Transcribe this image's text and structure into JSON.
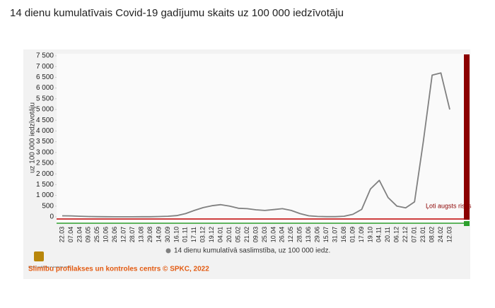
{
  "chart_data": {
    "type": "line",
    "title": "14 dienu kumulatīvais Covid-19 gadījumu skaits uz 100 000 iedzīvotāju",
    "y_label": "uz 100 000 iedzīvotāju",
    "categories": [
      "22.03",
      "07.04",
      "23.04",
      "09.05",
      "25.05",
      "10.06",
      "26.06",
      "12.07",
      "28.07",
      "13.08",
      "29.08",
      "14.09",
      "30.09",
      "16.10",
      "01.11",
      "17.11",
      "03.12",
      "19.12",
      "04.01",
      "20.01",
      "05.02",
      "21.02",
      "09.03",
      "25.03",
      "10.04",
      "26.04",
      "12.05",
      "28.05",
      "13.06",
      "29.06",
      "15.07",
      "31.07",
      "16.08",
      "01.09",
      "17.09",
      "19.10",
      "04.11",
      "20.11",
      "06.12",
      "22.12",
      "07.01",
      "23.01",
      "08.02",
      "24.02",
      "12.03"
    ],
    "series": [
      {
        "name": "14 dienu kumulatīvā saslimstība, uz 100 000 iedz.",
        "color": "#808080",
        "values": [
          50,
          45,
          30,
          15,
          10,
          5,
          3,
          3,
          3,
          5,
          8,
          15,
          30,
          60,
          150,
          300,
          430,
          520,
          570,
          500,
          400,
          380,
          330,
          300,
          340,
          380,
          300,
          150,
          50,
          20,
          10,
          10,
          30,
          120,
          350,
          1300,
          1700,
          900,
          500,
          420,
          700,
          3500,
          6600,
          6700,
          5000
        ]
      }
    ],
    "ylim": [
      0,
      7500
    ],
    "yticks": [
      0,
      500,
      {
        "value": 1000,
        "label": "1 000"
      },
      {
        "value": 1500,
        "label": "1 500"
      },
      {
        "value": 2000,
        "label": "2 000"
      },
      {
        "value": 2500,
        "label": "2 500"
      },
      {
        "value": 3000,
        "label": "3 000"
      },
      {
        "value": 3500,
        "label": "3 500"
      },
      {
        "value": 4000,
        "label": "4 000"
      },
      {
        "value": 4500,
        "label": "4 500"
      },
      {
        "value": 5000,
        "label": "5 000"
      },
      {
        "value": 5500,
        "label": "5 500"
      },
      {
        "value": 6000,
        "label": "6 000"
      },
      {
        "value": 6500,
        "label": "6 500"
      },
      {
        "value": 7000,
        "label": "7 000"
      },
      {
        "value": 7500,
        "label": "7 500"
      }
    ],
    "annotation": "Ļoti augsts risks",
    "legend": "bottom",
    "logo_caption": "Slimību profilakses un kontroles centrs",
    "footer": "Slimību profilakses un kontroles centrs © SPKC, 2022"
  }
}
